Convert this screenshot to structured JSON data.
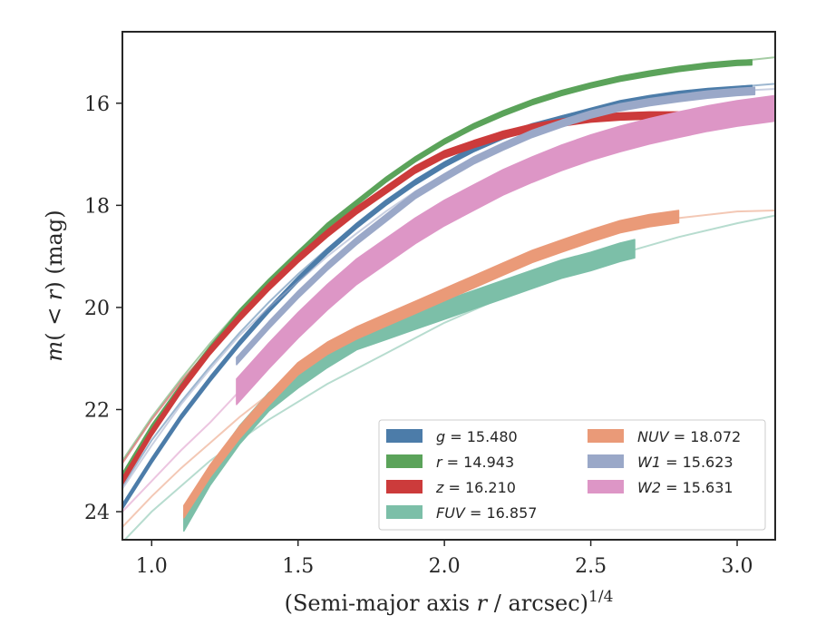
{
  "chart_data": {
    "type": "line",
    "xlabel": "(Semi-major axis r / arcsec)^1/4",
    "ylabel": "m(<r) (mag)",
    "xlim": [
      0.9,
      3.13
    ],
    "ylim": [
      24.55,
      14.6
    ],
    "y_inverted": true,
    "x_ticks": [
      "1.0",
      "1.5",
      "2.0",
      "2.5",
      "3.0"
    ],
    "x_tick_values": [
      1.0,
      1.5,
      2.0,
      2.5,
      3.0
    ],
    "y_ticks": [
      "16",
      "18",
      "20",
      "22",
      "24"
    ],
    "y_tick_values": [
      16,
      18,
      20,
      22,
      24
    ],
    "grid": false,
    "legend_position": "lower-right",
    "series": [
      {
        "name": "g = 15.480",
        "sym": "g",
        "val": "15.480",
        "color": "#4c7ca9",
        "data": [
          [
            0.9,
            23.9
          ],
          [
            1.0,
            23.0
          ],
          [
            1.1,
            22.15
          ],
          [
            1.2,
            21.4
          ],
          [
            1.3,
            20.7
          ],
          [
            1.4,
            20.05
          ],
          [
            1.5,
            19.45
          ],
          [
            1.6,
            18.9
          ],
          [
            1.7,
            18.4
          ],
          [
            1.8,
            17.95
          ],
          [
            1.9,
            17.55
          ],
          [
            2.0,
            17.2
          ],
          [
            2.1,
            16.9
          ],
          [
            2.2,
            16.65
          ],
          [
            2.3,
            16.45
          ],
          [
            2.4,
            16.3
          ],
          [
            2.5,
            16.15
          ],
          [
            2.6,
            16.0
          ],
          [
            2.7,
            15.9
          ],
          [
            2.8,
            15.82
          ],
          [
            2.9,
            15.76
          ],
          [
            3.0,
            15.72
          ],
          [
            3.05,
            15.7
          ]
        ],
        "model": [
          [
            0.9,
            23.5
          ],
          [
            1.0,
            22.6
          ],
          [
            1.1,
            21.85
          ],
          [
            1.2,
            21.15
          ],
          [
            1.3,
            20.5
          ],
          [
            1.4,
            19.9
          ],
          [
            1.5,
            19.35
          ],
          [
            1.6,
            18.85
          ],
          [
            1.7,
            18.38
          ],
          [
            1.8,
            17.95
          ],
          [
            1.9,
            17.55
          ],
          [
            2.0,
            17.2
          ],
          [
            2.2,
            16.65
          ],
          [
            2.4,
            16.25
          ],
          [
            2.6,
            15.98
          ],
          [
            2.8,
            15.8
          ],
          [
            3.0,
            15.68
          ],
          [
            3.13,
            15.62
          ]
        ],
        "band": 0.05
      },
      {
        "name": "r = 14.943",
        "sym": "r",
        "val": "14.943",
        "color": "#5ba35a",
        "data": [
          [
            0.9,
            23.3
          ],
          [
            1.0,
            22.35
          ],
          [
            1.1,
            21.55
          ],
          [
            1.2,
            20.8
          ],
          [
            1.3,
            20.1
          ],
          [
            1.4,
            19.5
          ],
          [
            1.5,
            18.95
          ],
          [
            1.6,
            18.4
          ],
          [
            1.7,
            17.95
          ],
          [
            1.8,
            17.5
          ],
          [
            1.9,
            17.1
          ],
          [
            2.0,
            16.75
          ],
          [
            2.1,
            16.45
          ],
          [
            2.2,
            16.2
          ],
          [
            2.3,
            15.98
          ],
          [
            2.4,
            15.8
          ],
          [
            2.5,
            15.65
          ],
          [
            2.6,
            15.52
          ],
          [
            2.7,
            15.42
          ],
          [
            2.8,
            15.33
          ],
          [
            2.9,
            15.26
          ],
          [
            3.0,
            15.21
          ],
          [
            3.05,
            15.2
          ]
        ],
        "model": [
          [
            0.9,
            23.0
          ],
          [
            1.0,
            22.15
          ],
          [
            1.1,
            21.4
          ],
          [
            1.2,
            20.7
          ],
          [
            1.3,
            20.05
          ],
          [
            1.4,
            19.45
          ],
          [
            1.5,
            18.9
          ],
          [
            1.6,
            18.4
          ],
          [
            1.7,
            17.95
          ],
          [
            1.8,
            17.52
          ],
          [
            1.9,
            17.12
          ],
          [
            2.0,
            16.78
          ],
          [
            2.2,
            16.2
          ],
          [
            2.4,
            15.78
          ],
          [
            2.6,
            15.5
          ],
          [
            2.8,
            15.3
          ],
          [
            3.0,
            15.18
          ],
          [
            3.13,
            15.1
          ]
        ],
        "band": 0.05
      },
      {
        "name": "z = 16.210",
        "sym": "z",
        "val": "16.210",
        "color": "#cc3b3b",
        "data": [
          [
            0.9,
            23.4
          ],
          [
            1.0,
            22.45
          ],
          [
            1.1,
            21.6
          ],
          [
            1.2,
            20.85
          ],
          [
            1.3,
            20.2
          ],
          [
            1.4,
            19.6
          ],
          [
            1.5,
            19.05
          ],
          [
            1.6,
            18.55
          ],
          [
            1.7,
            18.1
          ],
          [
            1.8,
            17.7
          ],
          [
            1.9,
            17.3
          ],
          [
            2.0,
            17.0
          ],
          [
            2.1,
            16.8
          ],
          [
            2.2,
            16.62
          ],
          [
            2.3,
            16.48
          ],
          [
            2.4,
            16.38
          ],
          [
            2.5,
            16.3
          ],
          [
            2.6,
            16.26
          ],
          [
            2.7,
            16.24
          ],
          [
            2.8,
            16.24
          ],
          [
            2.9,
            16.27
          ],
          [
            3.0,
            16.32
          ],
          [
            3.05,
            16.33
          ]
        ],
        "model": [
          [
            0.9,
            23.05
          ],
          [
            1.0,
            22.2
          ],
          [
            1.1,
            21.45
          ],
          [
            1.2,
            20.8
          ],
          [
            1.3,
            20.2
          ],
          [
            1.4,
            19.65
          ],
          [
            1.5,
            19.1
          ],
          [
            1.6,
            18.6
          ],
          [
            1.7,
            18.12
          ],
          [
            1.8,
            17.68
          ],
          [
            1.9,
            17.28
          ],
          [
            2.0,
            16.95
          ],
          [
            2.2,
            16.55
          ],
          [
            2.4,
            16.32
          ],
          [
            2.6,
            16.22
          ],
          [
            2.8,
            16.2
          ],
          [
            3.0,
            16.22
          ],
          [
            3.13,
            16.22
          ]
        ],
        "band": 0.07
      },
      {
        "name": "FUV = 16.857",
        "sym": "FUV",
        "val": "16.857",
        "color": "#7cbfa8",
        "data": [
          [
            1.11,
            24.2
          ],
          [
            1.2,
            23.3
          ],
          [
            1.3,
            22.5
          ],
          [
            1.4,
            21.85
          ],
          [
            1.5,
            21.4
          ],
          [
            1.6,
            21.0
          ],
          [
            1.7,
            20.65
          ],
          [
            1.8,
            20.45
          ],
          [
            1.9,
            20.25
          ],
          [
            2.0,
            20.05
          ],
          [
            2.1,
            19.85
          ],
          [
            2.2,
            19.65
          ],
          [
            2.3,
            19.45
          ],
          [
            2.4,
            19.25
          ],
          [
            2.5,
            19.1
          ],
          [
            2.6,
            18.92
          ],
          [
            2.65,
            18.85
          ]
        ],
        "model": [
          [
            0.9,
            24.6
          ],
          [
            1.0,
            24.0
          ],
          [
            1.2,
            23.0
          ],
          [
            1.4,
            22.2
          ],
          [
            1.6,
            21.5
          ],
          [
            1.8,
            20.9
          ],
          [
            2.0,
            20.3
          ],
          [
            2.2,
            19.8
          ],
          [
            2.4,
            19.35
          ],
          [
            2.6,
            18.95
          ],
          [
            2.8,
            18.62
          ],
          [
            3.0,
            18.35
          ],
          [
            3.13,
            18.2
          ]
        ],
        "band": 0.18
      },
      {
        "name": "NUV = 18.072",
        "sym": "NUV",
        "val": "18.072",
        "color": "#ea9a78",
        "data": [
          [
            1.11,
            24.0
          ],
          [
            1.2,
            23.2
          ],
          [
            1.3,
            22.45
          ],
          [
            1.4,
            21.8
          ],
          [
            1.5,
            21.2
          ],
          [
            1.6,
            20.8
          ],
          [
            1.7,
            20.5
          ],
          [
            1.8,
            20.25
          ],
          [
            1.9,
            20.0
          ],
          [
            2.0,
            19.75
          ],
          [
            2.1,
            19.5
          ],
          [
            2.2,
            19.25
          ],
          [
            2.3,
            19.0
          ],
          [
            2.4,
            18.8
          ],
          [
            2.5,
            18.6
          ],
          [
            2.6,
            18.42
          ],
          [
            2.7,
            18.3
          ],
          [
            2.8,
            18.22
          ]
        ],
        "model": [
          [
            0.9,
            24.3
          ],
          [
            1.0,
            23.7
          ],
          [
            1.1,
            23.15
          ],
          [
            1.2,
            22.65
          ],
          [
            1.3,
            22.15
          ],
          [
            1.4,
            21.7
          ],
          [
            1.5,
            21.25
          ],
          [
            1.6,
            20.85
          ],
          [
            1.8,
            20.2
          ],
          [
            2.0,
            19.68
          ],
          [
            2.2,
            19.2
          ],
          [
            2.4,
            18.78
          ],
          [
            2.6,
            18.45
          ],
          [
            2.8,
            18.25
          ],
          [
            3.0,
            18.12
          ],
          [
            3.13,
            18.1
          ]
        ],
        "band": 0.12
      },
      {
        "name": "W1 = 15.623",
        "sym": "W1",
        "val": "15.623",
        "color": "#9aa8c8",
        "data": [
          [
            1.29,
            21.05
          ],
          [
            1.4,
            20.35
          ],
          [
            1.5,
            19.75
          ],
          [
            1.6,
            19.2
          ],
          [
            1.7,
            18.7
          ],
          [
            1.8,
            18.25
          ],
          [
            1.9,
            17.8
          ],
          [
            2.0,
            17.45
          ],
          [
            2.1,
            17.12
          ],
          [
            2.2,
            16.85
          ],
          [
            2.3,
            16.6
          ],
          [
            2.4,
            16.4
          ],
          [
            2.5,
            16.22
          ],
          [
            2.6,
            16.08
          ],
          [
            2.7,
            15.98
          ],
          [
            2.8,
            15.9
          ],
          [
            2.9,
            15.83
          ],
          [
            3.0,
            15.78
          ],
          [
            3.06,
            15.76
          ]
        ],
        "model": [
          [
            0.9,
            23.55
          ],
          [
            1.0,
            22.7
          ],
          [
            1.1,
            21.9
          ],
          [
            1.2,
            21.2
          ],
          [
            1.3,
            20.55
          ],
          [
            1.4,
            20.0
          ],
          [
            1.5,
            19.5
          ],
          [
            1.6,
            19.0
          ],
          [
            1.7,
            18.55
          ],
          [
            1.8,
            18.12
          ],
          [
            1.9,
            17.73
          ],
          [
            2.0,
            17.4
          ],
          [
            2.2,
            16.85
          ],
          [
            2.4,
            16.4
          ],
          [
            2.6,
            16.08
          ],
          [
            2.8,
            15.88
          ],
          [
            3.0,
            15.76
          ],
          [
            3.13,
            15.72
          ]
        ],
        "band": 0.07
      },
      {
        "name": "W2 = 15.631",
        "sym": "W2",
        "val": "15.631",
        "color": "#dd96c6",
        "data": [
          [
            1.29,
            21.65
          ],
          [
            1.4,
            20.95
          ],
          [
            1.5,
            20.35
          ],
          [
            1.6,
            19.8
          ],
          [
            1.7,
            19.3
          ],
          [
            1.8,
            18.9
          ],
          [
            1.9,
            18.5
          ],
          [
            2.0,
            18.15
          ],
          [
            2.1,
            17.85
          ],
          [
            2.2,
            17.55
          ],
          [
            2.3,
            17.3
          ],
          [
            2.4,
            17.07
          ],
          [
            2.5,
            16.87
          ],
          [
            2.6,
            16.7
          ],
          [
            2.7,
            16.55
          ],
          [
            2.8,
            16.42
          ],
          [
            2.9,
            16.3
          ],
          [
            3.0,
            16.2
          ],
          [
            3.13,
            16.1
          ]
        ],
        "model": [
          [
            0.9,
            24.0
          ],
          [
            1.0,
            23.4
          ],
          [
            1.1,
            22.8
          ],
          [
            1.2,
            22.25
          ],
          [
            1.29,
            21.7
          ]
        ],
        "band": 0.25
      }
    ]
  }
}
